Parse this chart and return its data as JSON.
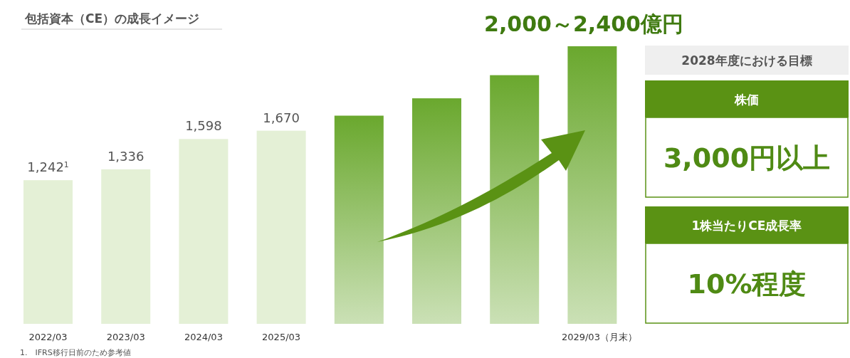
{
  "chart_data": [
    {
      "type": "bar",
      "title": "包括資本（CE）の成長イメージ",
      "categories": [
        "2022/03",
        "2023/03",
        "2024/03",
        "2025/03",
        null,
        null,
        null,
        "2029/03（月末）"
      ],
      "values": [
        1242,
        1336,
        1598,
        1670,
        1800,
        1950,
        2150,
        2400
      ],
      "colors": [
        "#e4f0d6",
        "#e4f0d6",
        "#e4f0d6",
        "#e4f0d6",
        "#6aa82e",
        "#6aa82e",
        "#6aa82e",
        "#6aa82e"
      ],
      "value_labels": [
        "1,242$^{1}$",
        "1,336",
        "1,598",
        "1,670",
        null,
        null,
        null,
        null
      ],
      "annotations": [
        "2,000～2,400億円",
        "1.　IFRS移行日前のため参考値"
      ]
    },
    {
      "type": "other",
      "title": "2028年度における目標",
      "annotations": [
        "株価",
        "3,000円以上",
        "1株当たりCE成長率",
        "10%程度"
      ]
    }
  ]
}
